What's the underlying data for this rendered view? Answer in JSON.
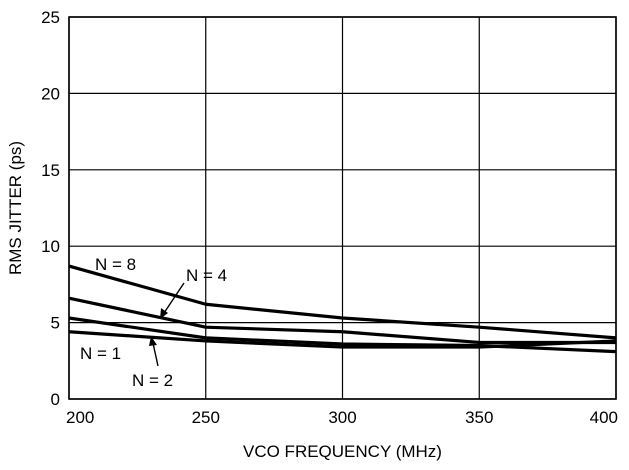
{
  "chart_data": {
    "type": "line",
    "title": "",
    "xlabel": "VCO FREQUENCY (MHz)",
    "ylabel": "RMS JITTER (ps)",
    "xlim": [
      200,
      400
    ],
    "ylim": [
      0,
      25
    ],
    "x_ticks": [
      200,
      250,
      300,
      350,
      400
    ],
    "y_ticks": [
      0,
      5,
      10,
      15,
      20,
      25
    ],
    "grid": true,
    "series": [
      {
        "name": "N = 8",
        "x": [
          200,
          250,
          300,
          350,
          400
        ],
        "y": [
          8.7,
          6.2,
          5.3,
          4.7,
          4.0
        ]
      },
      {
        "name": "N = 4",
        "x": [
          200,
          250,
          300,
          350,
          400
        ],
        "y": [
          6.6,
          4.7,
          4.4,
          3.7,
          3.7
        ]
      },
      {
        "name": "N = 2",
        "x": [
          200,
          250,
          300,
          350,
          400
        ],
        "y": [
          5.3,
          4.0,
          3.6,
          3.5,
          3.1
        ]
      },
      {
        "name": "N = 1",
        "x": [
          200,
          250,
          300,
          350,
          400
        ],
        "y": [
          4.4,
          3.8,
          3.4,
          3.4,
          3.8
        ]
      }
    ]
  }
}
